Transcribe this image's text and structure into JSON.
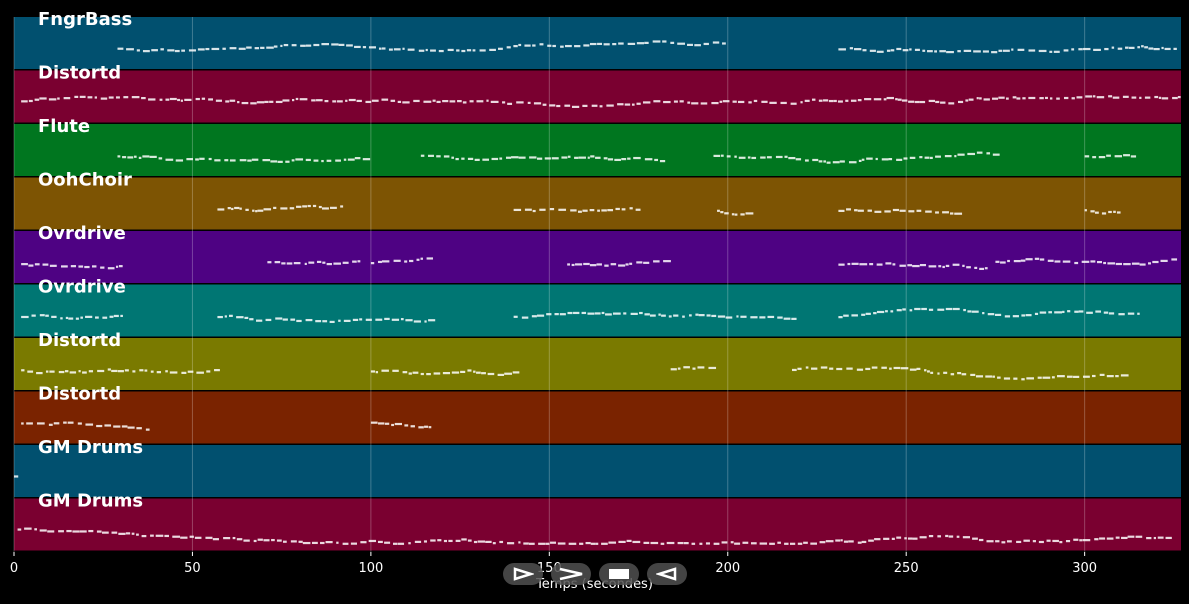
{
  "chart_data": {
    "type": "piano-roll",
    "xlabel": "Temps (secondes)",
    "xlim": [
      0,
      327
    ],
    "xticks": [
      0,
      50,
      100,
      150,
      200,
      250,
      300
    ],
    "grid": true,
    "tracks": [
      {
        "name": "FngrBass",
        "color": "#01506f",
        "segments": [
          [
            29,
            200
          ],
          [
            231,
            325
          ]
        ]
      },
      {
        "name": "Distortd",
        "color": "#7a0030",
        "segments": [
          [
            2,
            327
          ]
        ]
      },
      {
        "name": "Flute",
        "color": "#00761f",
        "segments": [
          [
            29,
            100
          ],
          [
            114,
            183
          ],
          [
            196,
            275
          ],
          [
            300,
            315
          ]
        ]
      },
      {
        "name": "OohChoir",
        "color": "#7d5403",
        "segments": [
          [
            57,
            92
          ],
          [
            140,
            175
          ],
          [
            197,
            208
          ],
          [
            231,
            265
          ],
          [
            300,
            310
          ]
        ]
      },
      {
        "name": "Ovrdrive",
        "color": "#4e0283",
        "segments": [
          [
            2,
            30
          ],
          [
            71,
            98
          ],
          [
            100,
            117
          ],
          [
            155,
            182
          ],
          [
            231,
            273
          ],
          [
            275,
            325
          ]
        ]
      },
      {
        "name": "Ovrdrive",
        "color": "#007673",
        "segments": [
          [
            2,
            30
          ],
          [
            57,
            117
          ],
          [
            140,
            218
          ],
          [
            231,
            315
          ]
        ]
      },
      {
        "name": "Distortd",
        "color": "#7a7a00",
        "segments": [
          [
            2,
            58
          ],
          [
            100,
            140
          ],
          [
            184,
            197
          ],
          [
            218,
            312
          ]
        ]
      },
      {
        "name": "Distortd",
        "color": "#7a2300",
        "segments": [
          [
            2,
            37
          ],
          [
            100,
            117
          ]
        ]
      },
      {
        "name": "GM Drums",
        "color": "#01506f",
        "segments": [
          [
            0,
            1
          ]
        ]
      },
      {
        "name": "GM Drums",
        "color": "#7a0030",
        "segments": [
          [
            1,
            325
          ]
        ]
      }
    ]
  },
  "controls": [
    {
      "name": "play-icon"
    },
    {
      "name": "fast-forward-icon"
    },
    {
      "name": "stop-icon"
    },
    {
      "name": "rewind-icon"
    }
  ]
}
